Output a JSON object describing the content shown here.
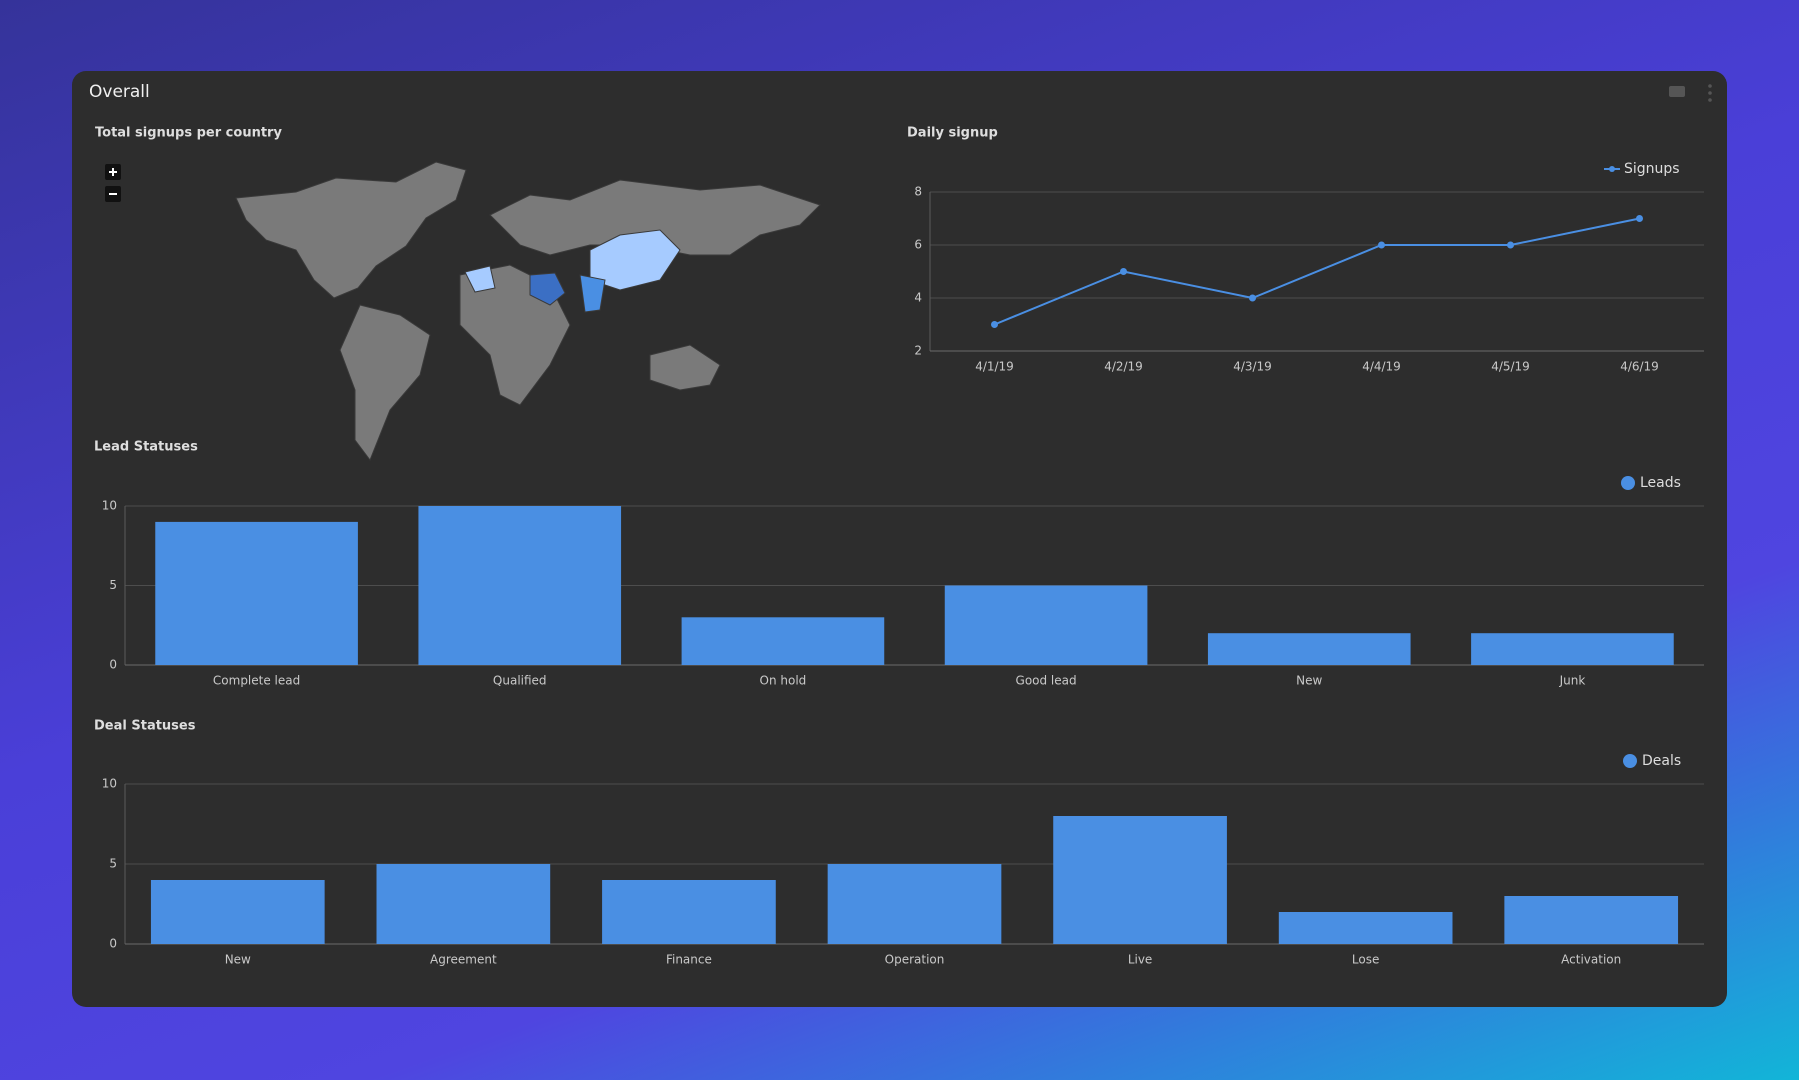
{
  "panel": {
    "title": "Overall"
  },
  "chart_data": [
    {
      "type": "map",
      "title": "Total signups per country"
    },
    {
      "type": "line",
      "title": "Daily signup",
      "categories": [
        "4/1/19",
        "4/2/19",
        "4/3/19",
        "4/4/19",
        "4/5/19",
        "4/6/19"
      ],
      "series": [
        {
          "name": "Signups",
          "color": "#4a8fe3",
          "values": [
            3,
            5,
            4,
            6,
            6,
            7
          ]
        }
      ],
      "ylim": [
        2,
        8
      ],
      "yticks": [
        2,
        4,
        6,
        8
      ],
      "grid": true,
      "legend": "top-right"
    },
    {
      "type": "bar",
      "title": "Lead Statuses",
      "categories": [
        "Complete lead",
        "Qualified",
        "On hold",
        "Good lead",
        "New",
        "Junk"
      ],
      "series": [
        {
          "name": "Leads",
          "color": "#4a8fe3",
          "values": [
            9,
            10,
            3,
            5,
            2,
            2
          ]
        }
      ],
      "ylim": [
        0,
        10
      ],
      "yticks": [
        0,
        5,
        10
      ],
      "grid": true,
      "legend": "top-right"
    },
    {
      "type": "bar",
      "title": "Deal Statuses",
      "categories": [
        "New",
        "Agreement",
        "Finance",
        "Operation",
        "Live",
        "Lose",
        "Activation"
      ],
      "series": [
        {
          "name": "Deals",
          "color": "#4a8fe3",
          "values": [
            4,
            5,
            4,
            5,
            8,
            2,
            3
          ]
        }
      ],
      "ylim": [
        0,
        10
      ],
      "yticks": [
        0,
        5,
        10
      ],
      "grid": true,
      "legend": "top-right"
    }
  ]
}
